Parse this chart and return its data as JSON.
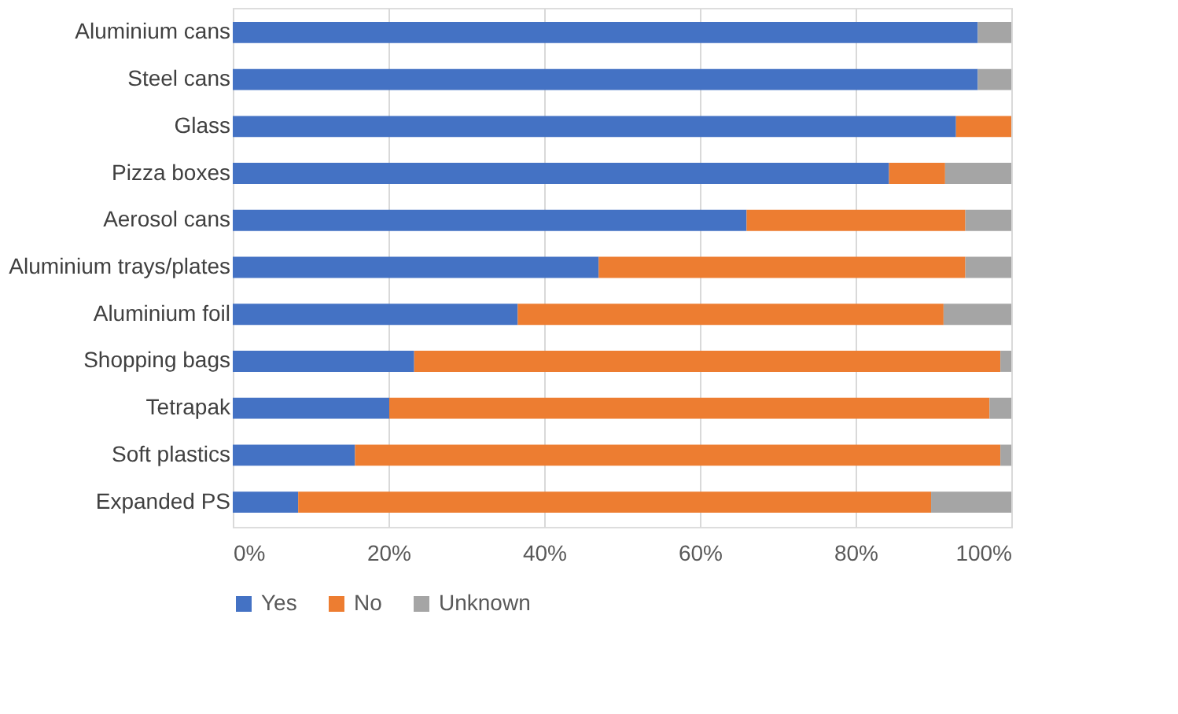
{
  "chart_data": {
    "type": "bar",
    "orientation": "horizontal",
    "stacked": true,
    "categories": [
      "Aluminium cans",
      "Steel cans",
      "Glass",
      "Pizza boxes",
      "Aerosol cans",
      "Aluminium trays/plates",
      "Aluminium foil",
      "Shopping bags",
      "Tetrapak",
      "Soft plastics",
      "Expanded PS"
    ],
    "series": [
      {
        "name": "Yes",
        "color": "#4472c4",
        "values": [
          95.7,
          95.7,
          92.9,
          84.3,
          66.0,
          47.0,
          36.6,
          23.3,
          20.1,
          15.7,
          8.4
        ]
      },
      {
        "name": "No",
        "color": "#ed7d31",
        "values": [
          0,
          0,
          7.1,
          7.2,
          28.1,
          47.1,
          54.7,
          75.3,
          77.1,
          82.9,
          81.3
        ]
      },
      {
        "name": "Unknown",
        "color": "#a5a5a5",
        "values": [
          4.3,
          4.3,
          0,
          8.5,
          5.9,
          5.9,
          8.7,
          1.4,
          2.8,
          1.4,
          10.3
        ]
      }
    ],
    "xlim": [
      0,
      100
    ],
    "xticks": [
      {
        "value": 0,
        "label": "0%"
      },
      {
        "value": 20,
        "label": "20%"
      },
      {
        "value": 40,
        "label": "40%"
      },
      {
        "value": 60,
        "label": "60%"
      },
      {
        "value": 80,
        "label": "80%"
      },
      {
        "value": 100,
        "label": "100%"
      }
    ],
    "grid": "x",
    "legend": "bottom"
  }
}
